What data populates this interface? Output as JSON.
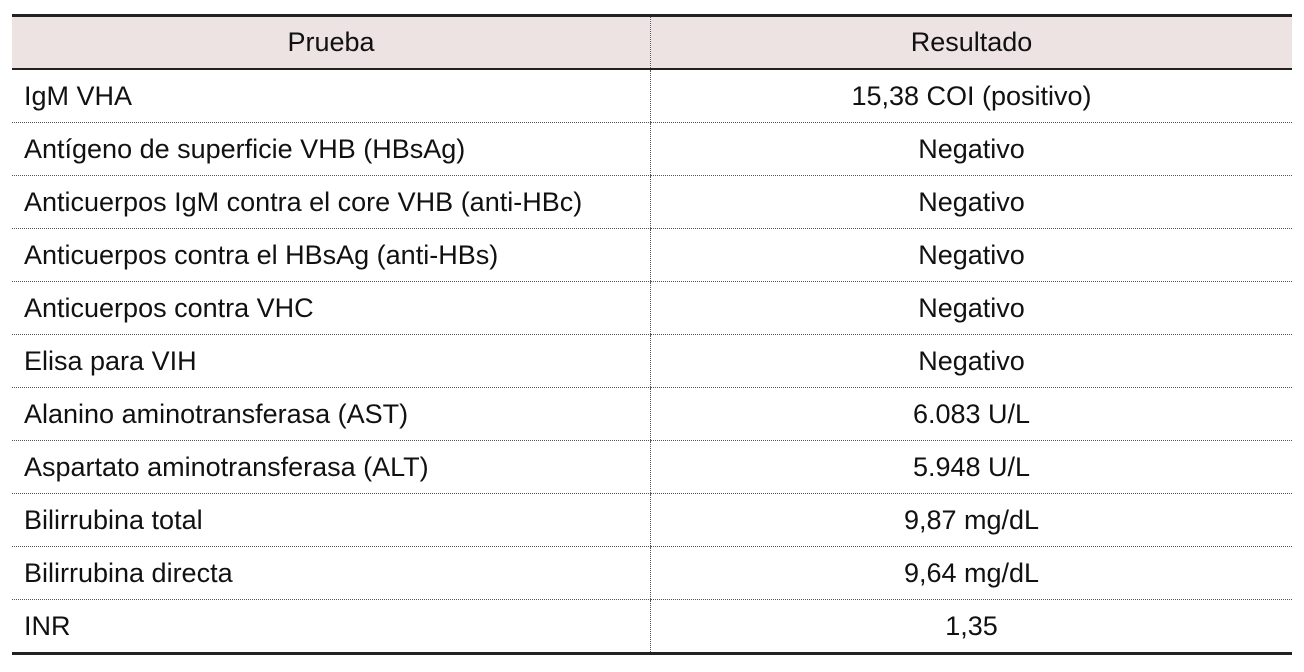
{
  "table": {
    "header": [
      "Prueba",
      "Resultado"
    ],
    "rows": [
      [
        "IgM VHA",
        "15,38 COI (positivo)"
      ],
      [
        "Antígeno de superficie VHB (HBsAg)",
        "Negativo"
      ],
      [
        "Anticuerpos IgM contra el core VHB (anti-HBc)",
        "Negativo"
      ],
      [
        "Anticuerpos contra el HBsAg (anti-HBs)",
        "Negativo"
      ],
      [
        "Anticuerpos contra VHC",
        "Negativo"
      ],
      [
        "Elisa para VIH",
        "Negativo"
      ],
      [
        "Alanino aminotransferasa (AST)",
        "6.083 U/L"
      ],
      [
        "Aspartato aminotransferasa (ALT)",
        "5.948 U/L"
      ],
      [
        "Bilirrubina total",
        "9,87 mg/dL"
      ],
      [
        "Bilirrubina directa",
        "9,64 mg/dL"
      ],
      [
        "INR",
        "1,35"
      ]
    ]
  }
}
